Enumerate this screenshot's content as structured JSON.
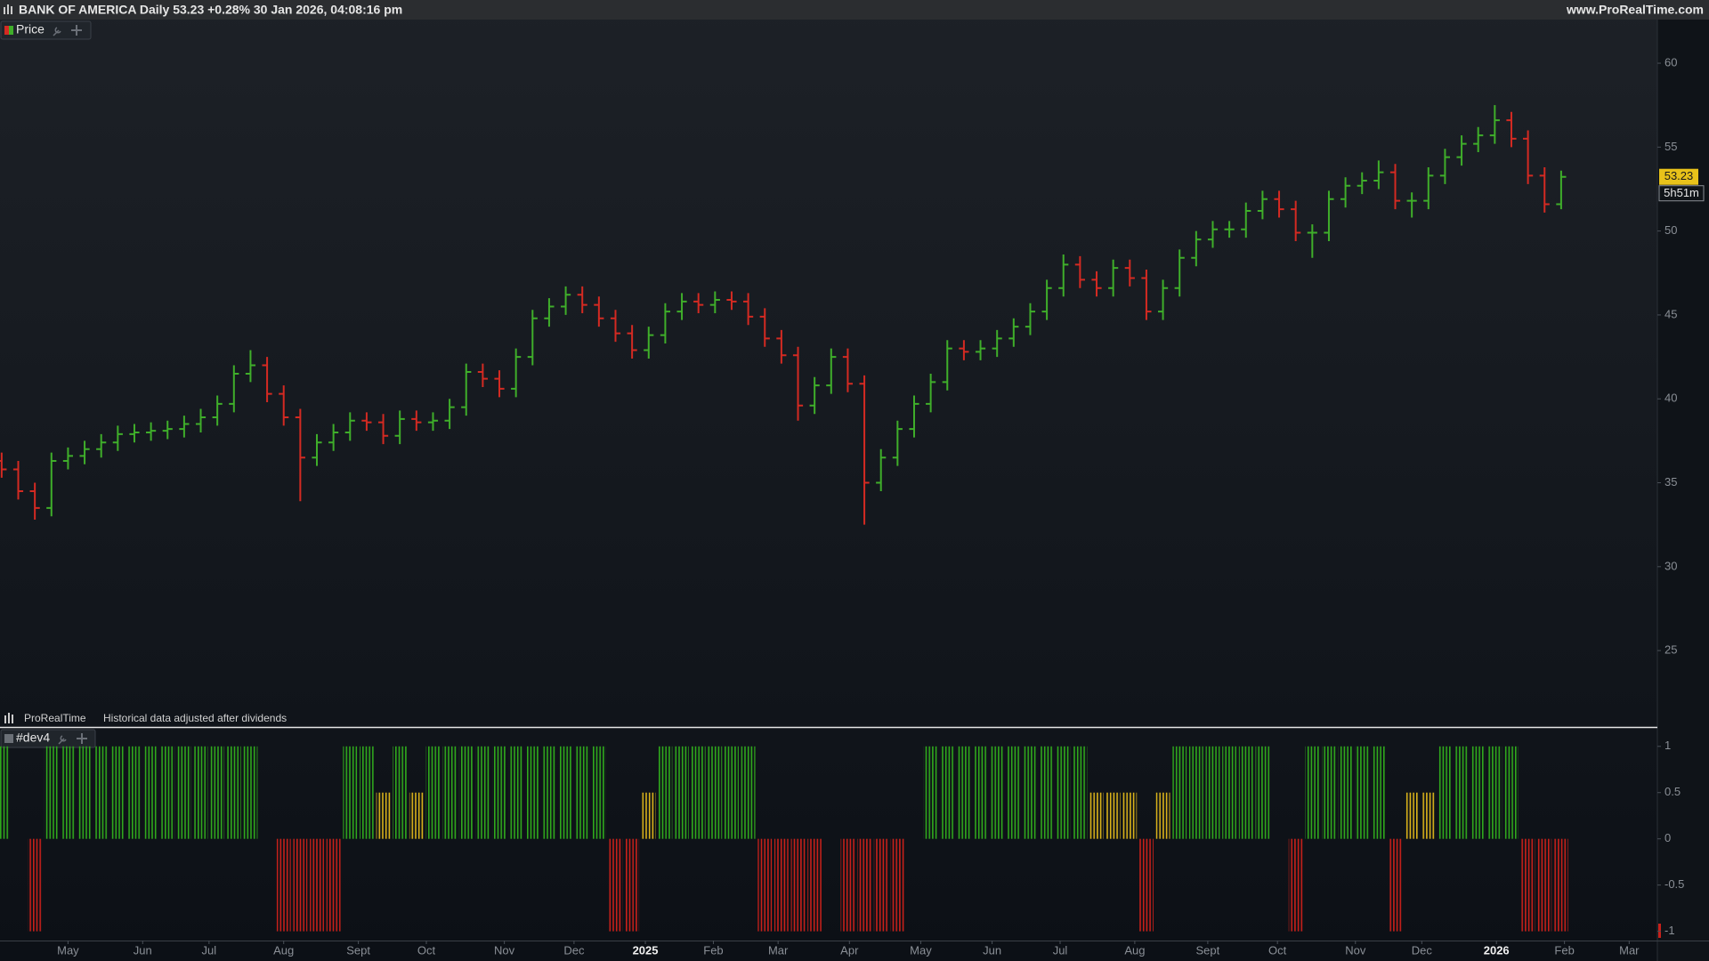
{
  "header": {
    "title": "BANK OF AMERICA Daily 53.23 +0.28% 30 Jan 2026, 04:08:16 pm",
    "website": "www.ProRealTime.com"
  },
  "chart_data": [
    {
      "type": "ohlc",
      "title": "Price",
      "source": "ProRealTime",
      "note": "Historical data adjusted after dividends",
      "countdown": "5h51m",
      "up_color": "#3fae2a",
      "down_color": "#d42a22",
      "last_label_color": "#e8c21a",
      "x": [
        0,
        1,
        2,
        3,
        4,
        5,
        6,
        7,
        8,
        9,
        10,
        11,
        12,
        13,
        14,
        15,
        16,
        17,
        18,
        19,
        20,
        21,
        22,
        23,
        24,
        25,
        26,
        27,
        28,
        29,
        30,
        31,
        32,
        33,
        34,
        35,
        36,
        37,
        38,
        39,
        40,
        41,
        42,
        43,
        44,
        45,
        46,
        47,
        48,
        49,
        50,
        51,
        52,
        53,
        54,
        55,
        56,
        57,
        58,
        59,
        60,
        61,
        62,
        63,
        64,
        65,
        66,
        67,
        68,
        69,
        70,
        71,
        72,
        73,
        74,
        75,
        76,
        77,
        78,
        79,
        80,
        81,
        82,
        83,
        84,
        85,
        86,
        87,
        88,
        89,
        90,
        91,
        92,
        93,
        94
      ],
      "open": [
        36.3,
        35.8,
        34.5,
        33.5,
        36.3,
        36.6,
        37.0,
        37.4,
        37.9,
        38.0,
        38.1,
        38.2,
        38.5,
        38.9,
        39.7,
        41.5,
        42.0,
        40.3,
        38.9,
        36.5,
        37.4,
        38.0,
        38.7,
        38.6,
        37.8,
        38.8,
        38.6,
        38.7,
        39.5,
        41.6,
        41.2,
        40.6,
        42.5,
        44.8,
        45.5,
        46.2,
        45.6,
        44.8,
        43.9,
        42.9,
        43.8,
        45.2,
        45.8,
        45.6,
        45.9,
        45.8,
        44.9,
        43.6,
        42.6,
        39.6,
        40.8,
        42.5,
        40.9,
        35.0,
        36.5,
        38.2,
        39.7,
        41.0,
        43.0,
        42.8,
        43.0,
        43.6,
        44.3,
        45.2,
        46.6,
        48.0,
        47.1,
        46.6,
        47.8,
        47.2,
        45.2,
        46.6,
        48.4,
        49.5,
        50.1,
        50.1,
        51.2,
        51.9,
        51.3,
        49.9,
        49.9,
        51.9,
        52.7,
        53.0,
        53.5,
        51.8,
        51.8,
        53.3,
        54.4,
        55.2,
        55.7,
        56.6,
        55.5,
        53.3,
        51.6
      ],
      "high": [
        36.8,
        36.3,
        35.0,
        36.8,
        37.1,
        37.5,
        37.9,
        38.4,
        38.5,
        38.6,
        38.7,
        39.0,
        39.4,
        40.2,
        42.0,
        42.9,
        42.5,
        40.8,
        39.4,
        37.9,
        38.5,
        39.2,
        39.2,
        39.1,
        39.3,
        39.3,
        39.2,
        40.0,
        42.1,
        42.1,
        41.7,
        43.0,
        45.3,
        46.0,
        46.7,
        46.7,
        46.1,
        45.3,
        44.4,
        44.3,
        45.7,
        46.3,
        46.3,
        46.4,
        46.4,
        46.3,
        45.4,
        44.1,
        43.1,
        41.3,
        43.0,
        43.0,
        41.4,
        37.0,
        38.7,
        40.2,
        41.5,
        43.5,
        43.5,
        43.5,
        44.1,
        44.8,
        45.7,
        47.1,
        48.6,
        48.5,
        47.6,
        48.3,
        48.3,
        47.7,
        47.1,
        48.9,
        50.0,
        50.6,
        50.6,
        51.7,
        52.4,
        52.4,
        51.8,
        50.4,
        52.4,
        53.2,
        53.5,
        54.2,
        54.0,
        52.3,
        53.8,
        54.9,
        55.7,
        56.2,
        57.5,
        57.1,
        56.0,
        53.8,
        53.6
      ],
      "low": [
        35.3,
        34.0,
        32.8,
        33.0,
        35.8,
        36.1,
        36.5,
        36.9,
        37.4,
        37.5,
        37.6,
        37.7,
        38.0,
        38.4,
        39.2,
        41.0,
        39.8,
        38.4,
        33.9,
        36.0,
        36.9,
        37.5,
        38.1,
        37.3,
        37.3,
        38.1,
        38.1,
        38.2,
        39.0,
        40.7,
        40.1,
        40.1,
        42.0,
        44.3,
        45.0,
        45.1,
        44.3,
        43.4,
        42.4,
        42.4,
        43.3,
        44.7,
        45.1,
        45.1,
        45.3,
        44.4,
        43.1,
        42.1,
        38.7,
        39.1,
        40.3,
        40.4,
        32.5,
        34.5,
        36.0,
        37.7,
        39.2,
        40.5,
        42.3,
        42.3,
        42.5,
        43.1,
        43.8,
        44.7,
        46.1,
        46.6,
        46.1,
        46.1,
        46.7,
        44.7,
        44.7,
        46.1,
        47.9,
        49.0,
        49.6,
        49.6,
        50.7,
        50.8,
        49.4,
        48.4,
        49.4,
        51.4,
        52.2,
        52.5,
        51.3,
        50.8,
        51.3,
        52.8,
        53.9,
        54.7,
        55.2,
        55.0,
        52.8,
        51.1,
        51.3
      ],
      "close": [
        35.8,
        34.5,
        33.5,
        36.3,
        36.6,
        37.0,
        37.4,
        37.9,
        38.0,
        38.1,
        38.2,
        38.5,
        38.9,
        39.7,
        41.5,
        42.0,
        40.3,
        38.9,
        36.5,
        37.4,
        38.0,
        38.7,
        38.6,
        37.8,
        38.8,
        38.6,
        38.7,
        39.5,
        41.6,
        41.2,
        40.6,
        42.5,
        44.8,
        45.5,
        46.2,
        45.6,
        44.8,
        43.9,
        42.9,
        43.8,
        45.2,
        45.8,
        45.6,
        45.9,
        45.8,
        44.9,
        43.6,
        42.6,
        39.6,
        40.8,
        42.5,
        40.9,
        35.0,
        36.5,
        38.2,
        39.7,
        41.0,
        43.0,
        42.8,
        43.0,
        43.6,
        44.3,
        45.2,
        46.6,
        48.0,
        47.1,
        46.6,
        47.8,
        47.2,
        45.2,
        46.6,
        48.4,
        49.5,
        50.1,
        50.1,
        51.2,
        51.9,
        51.3,
        49.9,
        49.9,
        51.9,
        52.7,
        53.0,
        53.5,
        51.8,
        51.8,
        53.3,
        54.4,
        55.2,
        55.7,
        56.6,
        55.5,
        53.3,
        51.6,
        53.23
      ],
      "xlim": [
        -0.1,
        99.8
      ],
      "ylim": [
        20.5,
        62.6
      ],
      "yticks": [
        25,
        30,
        35,
        40,
        45,
        50,
        55,
        60
      ]
    },
    {
      "type": "bar",
      "title": "#dev4",
      "color_positive": "#2fa81c",
      "color_neutral": "#d9b21a",
      "color_negative": "#c8201a",
      "x": [
        0,
        1,
        2,
        3,
        4,
        5,
        6,
        7,
        8,
        9,
        10,
        11,
        12,
        13,
        14,
        15,
        16,
        17,
        18,
        19,
        20,
        21,
        22,
        23,
        24,
        25,
        26,
        27,
        28,
        29,
        30,
        31,
        32,
        33,
        34,
        35,
        36,
        37,
        38,
        39,
        40,
        41,
        42,
        43,
        44,
        45,
        46,
        47,
        48,
        49,
        50,
        51,
        52,
        53,
        54,
        55,
        56,
        57,
        58,
        59,
        60,
        61,
        62,
        63,
        64,
        65,
        66,
        67,
        68,
        69,
        70,
        71,
        72,
        73,
        74,
        75,
        76,
        77,
        78,
        79,
        80,
        81,
        82,
        83,
        84,
        85,
        86,
        87,
        88,
        89,
        90,
        91,
        92,
        93,
        94
      ],
      "values": [
        1,
        0,
        -1,
        1,
        1,
        1,
        1,
        1,
        1,
        1,
        1,
        1,
        1,
        1,
        1,
        1,
        0,
        -1,
        -1,
        -1,
        -1,
        1,
        1,
        0.5,
        1,
        0.5,
        1,
        1,
        1,
        1,
        1,
        1,
        1,
        1,
        1,
        1,
        1,
        -1,
        -1,
        0.5,
        1,
        1,
        1,
        1,
        1,
        1,
        -1,
        -1,
        -1,
        -1,
        0,
        -1,
        -1,
        -1,
        -1,
        0,
        1,
        1,
        1,
        1,
        1,
        1,
        1,
        1,
        1,
        1,
        0.5,
        0.5,
        0.5,
        -1,
        0.5,
        1,
        1,
        1,
        1,
        1,
        1,
        0,
        -1,
        1,
        1,
        1,
        1,
        1,
        -1,
        0.5,
        0.5,
        1,
        1,
        1,
        1,
        1,
        -1,
        -1,
        -1
      ],
      "xlim": [
        -0.1,
        99.8
      ],
      "ylim": [
        -1.1,
        1.2
      ],
      "yticks": [
        -1,
        -0.5,
        0,
        0.5,
        1
      ],
      "xticks": [
        {
          "value": 4.0,
          "label": "May"
        },
        {
          "value": 8.5,
          "label": "Jun"
        },
        {
          "value": 12.5,
          "label": "Jul"
        },
        {
          "value": 17.0,
          "label": "Aug"
        },
        {
          "value": 21.5,
          "label": "Sept"
        },
        {
          "value": 25.6,
          "label": "Oct"
        },
        {
          "value": 30.3,
          "label": "Nov"
        },
        {
          "value": 34.5,
          "label": "Dec"
        },
        {
          "value": 38.8,
          "label": "2025"
        },
        {
          "value": 42.9,
          "label": "Feb"
        },
        {
          "value": 46.8,
          "label": "Mar"
        },
        {
          "value": 51.1,
          "label": "Apr"
        },
        {
          "value": 55.4,
          "label": "May"
        },
        {
          "value": 59.7,
          "label": "Jun"
        },
        {
          "value": 63.8,
          "label": "Jul"
        },
        {
          "value": 68.3,
          "label": "Aug"
        },
        {
          "value": 72.7,
          "label": "Sept"
        },
        {
          "value": 76.9,
          "label": "Oct"
        },
        {
          "value": 81.6,
          "label": "Nov"
        },
        {
          "value": 85.6,
          "label": "Dec"
        },
        {
          "value": 90.1,
          "label": "2026"
        },
        {
          "value": 94.2,
          "label": "Feb"
        },
        {
          "value": 98.1,
          "label": "Mar"
        }
      ]
    }
  ]
}
